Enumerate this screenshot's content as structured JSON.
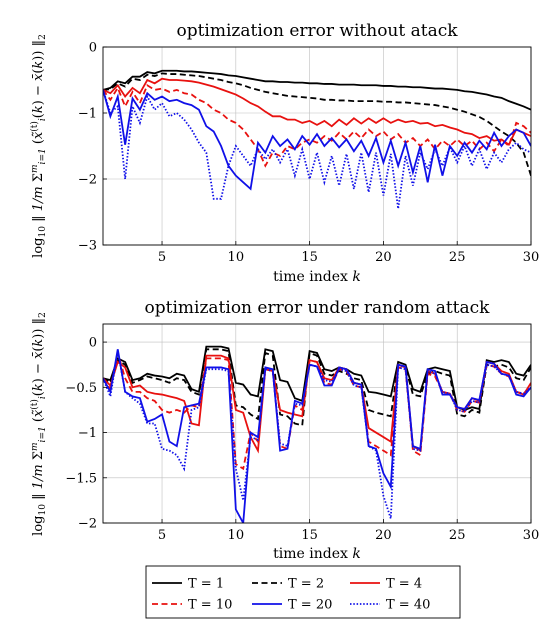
{
  "chart_data": [
    {
      "type": "line",
      "title": "optimization error without atack",
      "xlabel": "time index k",
      "ylabel": "log10 ‖ (1/m) Σ_{i=1}^{m} (x̃_i^{(t)}(k) − x̄(k)) ‖_2",
      "xlim": [
        1,
        30
      ],
      "ylim": [
        -3,
        0
      ],
      "xticks": [
        5,
        10,
        15,
        20,
        25,
        30
      ],
      "yticks": [
        -3,
        -2,
        -1,
        0
      ],
      "grid": true,
      "x": [
        1,
        1.5,
        2,
        2.5,
        3,
        3.5,
        4,
        4.5,
        5,
        5.5,
        6,
        6.5,
        7,
        7.5,
        8,
        8.5,
        9,
        9.5,
        10,
        10.5,
        11,
        11.5,
        12,
        12.5,
        13,
        13.5,
        14,
        14.5,
        15,
        15.5,
        16,
        16.5,
        17,
        17.5,
        18,
        18.5,
        19,
        19.5,
        20,
        20.5,
        21,
        21.5,
        22,
        22.5,
        23,
        23.5,
        24,
        24.5,
        25,
        25.5,
        26,
        26.5,
        27,
        27.5,
        28,
        28.5,
        29,
        29.5,
        30
      ],
      "series": [
        {
          "name": "T = 1",
          "color": "#000000",
          "dash": "solid",
          "values": [
            -0.65,
            -0.62,
            -0.52,
            -0.55,
            -0.45,
            -0.45,
            -0.38,
            -0.4,
            -0.36,
            -0.36,
            -0.36,
            -0.37,
            -0.37,
            -0.38,
            -0.39,
            -0.4,
            -0.41,
            -0.43,
            -0.44,
            -0.46,
            -0.48,
            -0.5,
            -0.52,
            -0.52,
            -0.53,
            -0.53,
            -0.54,
            -0.54,
            -0.55,
            -0.55,
            -0.56,
            -0.56,
            -0.57,
            -0.57,
            -0.57,
            -0.58,
            -0.58,
            -0.58,
            -0.59,
            -0.59,
            -0.6,
            -0.6,
            -0.61,
            -0.61,
            -0.62,
            -0.63,
            -0.63,
            -0.64,
            -0.65,
            -0.67,
            -0.68,
            -0.7,
            -0.72,
            -0.75,
            -0.77,
            -0.82,
            -0.86,
            -0.9,
            -0.95
          ]
        },
        {
          "name": "T = 2",
          "color": "#000000",
          "dash": "dashed",
          "values": [
            -0.65,
            -0.64,
            -0.55,
            -0.6,
            -0.48,
            -0.5,
            -0.42,
            -0.44,
            -0.4,
            -0.41,
            -0.41,
            -0.42,
            -0.43,
            -0.44,
            -0.46,
            -0.48,
            -0.5,
            -0.53,
            -0.55,
            -0.58,
            -0.62,
            -0.65,
            -0.68,
            -0.7,
            -0.72,
            -0.74,
            -0.75,
            -0.76,
            -0.77,
            -0.78,
            -0.8,
            -0.8,
            -0.81,
            -0.81,
            -0.82,
            -0.82,
            -0.82,
            -0.82,
            -0.83,
            -0.83,
            -0.84,
            -0.84,
            -0.85,
            -0.86,
            -0.87,
            -0.88,
            -0.9,
            -0.92,
            -0.95,
            -0.98,
            -1.02,
            -1.06,
            -1.12,
            -1.2,
            -1.28,
            -1.35,
            -1.45,
            -1.6,
            -1.95
          ]
        },
        {
          "name": "T = 4",
          "color": "#e8110f",
          "dash": "solid",
          "values": [
            -0.65,
            -0.7,
            -0.58,
            -0.75,
            -0.62,
            -0.7,
            -0.5,
            -0.55,
            -0.48,
            -0.5,
            -0.5,
            -0.51,
            -0.52,
            -0.54,
            -0.57,
            -0.6,
            -0.64,
            -0.68,
            -0.72,
            -0.78,
            -0.85,
            -0.9,
            -0.98,
            -1.05,
            -1.05,
            -1.1,
            -1.1,
            -1.15,
            -1.12,
            -1.18,
            -1.12,
            -1.2,
            -1.1,
            -1.18,
            -1.08,
            -1.16,
            -1.08,
            -1.15,
            -1.08,
            -1.15,
            -1.1,
            -1.14,
            -1.12,
            -1.16,
            -1.15,
            -1.2,
            -1.18,
            -1.22,
            -1.25,
            -1.3,
            -1.32,
            -1.38,
            -1.35,
            -1.42,
            -1.4,
            -1.48,
            -1.25,
            -1.3,
            -1.35
          ]
        },
        {
          "name": "T = 10",
          "color": "#e8110f",
          "dash": "dashed",
          "values": [
            -0.65,
            -0.8,
            -0.62,
            -0.9,
            -0.68,
            -0.85,
            -0.58,
            -0.65,
            -0.63,
            -0.68,
            -0.65,
            -0.7,
            -0.72,
            -0.8,
            -0.85,
            -0.95,
            -1.0,
            -1.1,
            -1.15,
            -1.25,
            -1.4,
            -1.55,
            -1.8,
            -1.6,
            -1.65,
            -1.5,
            -1.55,
            -1.45,
            -1.4,
            -1.45,
            -1.35,
            -1.42,
            -1.3,
            -1.4,
            -1.28,
            -1.38,
            -1.25,
            -1.35,
            -1.28,
            -1.4,
            -1.32,
            -1.45,
            -1.38,
            -1.5,
            -1.4,
            -1.55,
            -1.42,
            -1.5,
            -1.4,
            -1.5,
            -1.42,
            -1.55,
            -1.45,
            -1.58,
            -1.4,
            -1.5,
            -1.15,
            -1.2,
            -1.3
          ]
        },
        {
          "name": "T = 20",
          "color": "#1010e8",
          "dash": "solid",
          "values": [
            -0.65,
            -1.05,
            -0.75,
            -1.48,
            -0.78,
            -0.95,
            -0.7,
            -0.8,
            -0.75,
            -0.82,
            -0.8,
            -0.85,
            -0.88,
            -0.95,
            -1.2,
            -1.28,
            -1.5,
            -1.8,
            -1.95,
            -2.05,
            -2.15,
            -1.45,
            -1.6,
            -1.35,
            -1.5,
            -1.4,
            -1.55,
            -1.35,
            -1.48,
            -1.32,
            -1.5,
            -1.38,
            -1.52,
            -1.4,
            -1.58,
            -1.42,
            -1.65,
            -1.38,
            -1.75,
            -1.42,
            -1.8,
            -1.45,
            -1.9,
            -1.5,
            -2.05,
            -1.48,
            -1.95,
            -1.5,
            -1.65,
            -1.45,
            -1.6,
            -1.42,
            -1.55,
            -1.3,
            -1.5,
            -1.35,
            -1.25,
            -1.3,
            -1.5
          ]
        },
        {
          "name": "T = 40",
          "color": "#1010e8",
          "dash": "dotted",
          "values": [
            -0.65,
            -1.0,
            -0.9,
            -2.0,
            -0.9,
            -1.15,
            -0.75,
            -0.95,
            -0.85,
            -1.05,
            -1.0,
            -1.1,
            -1.25,
            -1.45,
            -1.6,
            -2.3,
            -2.3,
            -1.8,
            -1.5,
            -1.65,
            -1.8,
            -1.55,
            -1.7,
            -1.55,
            -1.75,
            -1.55,
            -1.95,
            -1.55,
            -2.0,
            -1.6,
            -2.05,
            -1.65,
            -2.1,
            -1.62,
            -2.15,
            -1.6,
            -2.2,
            -1.6,
            -2.25,
            -1.62,
            -2.45,
            -1.65,
            -2.1,
            -1.6,
            -1.85,
            -1.55,
            -1.8,
            -1.52,
            -1.75,
            -1.5,
            -1.8,
            -1.55,
            -1.85,
            -1.6,
            -1.75,
            -1.55,
            -1.45,
            -1.55,
            -1.6
          ]
        }
      ]
    },
    {
      "type": "line",
      "title": "optimization error under random attack",
      "xlabel": "time index k",
      "ylabel": "log10 ‖ (1/m) Σ_{i=1}^{m} (x̃_i^{(t)}(k) − x̄(k)) ‖_2",
      "xlim": [
        1,
        30
      ],
      "ylim": [
        -2,
        0.2
      ],
      "xticks": [
        5,
        10,
        15,
        20,
        25,
        30
      ],
      "yticks": [
        -2,
        -1.5,
        -1,
        -0.5,
        0
      ],
      "grid": true,
      "x": [
        1,
        1.5,
        2,
        2.5,
        3,
        3.5,
        4,
        4.5,
        5,
        5.5,
        6,
        6.5,
        7,
        7.5,
        8,
        8.5,
        9,
        9.5,
        10,
        10.5,
        11,
        11.5,
        12,
        12.5,
        13,
        13.5,
        14,
        14.5,
        15,
        15.5,
        16,
        16.5,
        17,
        17.5,
        18,
        18.5,
        19,
        19.5,
        20,
        20.5,
        21,
        21.5,
        22,
        22.5,
        23,
        23.5,
        24,
        24.5,
        25,
        25.5,
        26,
        26.5,
        27,
        27.5,
        28,
        28.5,
        29,
        29.5,
        30
      ],
      "series": [
        {
          "name": "T = 1",
          "color": "#000000",
          "dash": "solid",
          "values": [
            -0.4,
            -0.42,
            -0.18,
            -0.22,
            -0.42,
            -0.4,
            -0.35,
            -0.37,
            -0.38,
            -0.4,
            -0.35,
            -0.37,
            -0.52,
            -0.55,
            -0.05,
            -0.05,
            -0.05,
            -0.07,
            -0.45,
            -0.47,
            -0.58,
            -0.6,
            -0.08,
            -0.1,
            -0.42,
            -0.44,
            -0.62,
            -0.65,
            -0.1,
            -0.12,
            -0.3,
            -0.32,
            -0.28,
            -0.3,
            -0.35,
            -0.37,
            -0.55,
            -0.56,
            -0.58,
            -0.6,
            -0.22,
            -0.25,
            -0.52,
            -0.55,
            -0.3,
            -0.28,
            -0.3,
            -0.32,
            -0.72,
            -0.75,
            -0.72,
            -0.74,
            -0.2,
            -0.22,
            -0.2,
            -0.22,
            -0.35,
            -0.37,
            -0.25
          ]
        },
        {
          "name": "T = 2",
          "color": "#000000",
          "dash": "dashed",
          "values": [
            -0.4,
            -0.45,
            -0.2,
            -0.25,
            -0.45,
            -0.42,
            -0.38,
            -0.4,
            -0.42,
            -0.45,
            -0.4,
            -0.42,
            -0.55,
            -0.58,
            -0.08,
            -0.08,
            -0.08,
            -0.1,
            -0.7,
            -0.72,
            -0.8,
            -0.85,
            -0.12,
            -0.15,
            -0.8,
            -0.82,
            -0.9,
            -0.92,
            -0.12,
            -0.15,
            -0.35,
            -0.37,
            -0.32,
            -0.35,
            -0.4,
            -0.42,
            -0.75,
            -0.78,
            -0.8,
            -0.82,
            -0.25,
            -0.28,
            -0.58,
            -0.6,
            -0.35,
            -0.32,
            -0.35,
            -0.37,
            -0.8,
            -0.82,
            -0.75,
            -0.78,
            -0.25,
            -0.27,
            -0.25,
            -0.28,
            -0.4,
            -0.42,
            -0.28
          ]
        },
        {
          "name": "T = 4",
          "color": "#e8110f",
          "dash": "solid",
          "values": [
            -0.4,
            -0.48,
            -0.22,
            -0.28,
            -0.5,
            -0.48,
            -0.55,
            -0.57,
            -0.58,
            -0.6,
            -0.62,
            -0.65,
            -0.9,
            -0.92,
            -0.15,
            -0.15,
            -0.15,
            -0.18,
            -0.75,
            -0.78,
            -1.05,
            -1.2,
            -0.3,
            -0.32,
            -0.75,
            -0.78,
            -0.8,
            -0.82,
            -0.2,
            -0.22,
            -0.4,
            -0.42,
            -0.28,
            -0.3,
            -0.45,
            -0.47,
            -0.95,
            -1.0,
            -1.05,
            -1.1,
            -0.25,
            -0.28,
            -1.15,
            -1.2,
            -0.32,
            -0.35,
            -0.55,
            -0.57,
            -0.72,
            -0.74,
            -0.62,
            -0.65,
            -0.22,
            -0.24,
            -0.32,
            -0.35,
            -0.55,
            -0.58,
            -0.45
          ]
        },
        {
          "name": "T = 10",
          "color": "#e8110f",
          "dash": "dashed",
          "values": [
            -0.4,
            -0.52,
            -0.12,
            -0.4,
            -0.55,
            -0.55,
            -0.62,
            -0.65,
            -0.75,
            -0.78,
            -0.75,
            -0.78,
            -0.7,
            -0.72,
            -0.18,
            -0.18,
            -0.18,
            -0.2,
            -1.35,
            -1.4,
            -1.0,
            -1.1,
            -0.3,
            -0.32,
            -1.15,
            -1.18,
            -0.7,
            -0.75,
            -0.2,
            -0.22,
            -0.45,
            -0.47,
            -0.3,
            -0.32,
            -0.48,
            -0.5,
            -1.1,
            -1.15,
            -1.2,
            -1.25,
            -0.28,
            -0.3,
            -1.2,
            -1.25,
            -0.35,
            -0.38,
            -0.55,
            -0.57,
            -0.75,
            -0.77,
            -0.65,
            -0.67,
            -0.25,
            -0.27,
            -0.35,
            -0.38,
            -0.55,
            -0.57,
            -0.48
          ]
        },
        {
          "name": "T = 20",
          "color": "#1010e8",
          "dash": "solid",
          "values": [
            -0.4,
            -0.55,
            -0.08,
            -0.55,
            -0.6,
            -0.62,
            -0.88,
            -0.85,
            -0.8,
            -1.1,
            -1.15,
            -0.72,
            -0.7,
            -0.68,
            -0.28,
            -0.28,
            -0.28,
            -0.3,
            -1.85,
            -2.0,
            -1.0,
            -1.05,
            -0.28,
            -0.3,
            -1.2,
            -1.18,
            -0.65,
            -0.68,
            -0.25,
            -0.27,
            -0.48,
            -0.48,
            -0.28,
            -0.3,
            -0.45,
            -0.47,
            -1.15,
            -1.18,
            -1.45,
            -1.6,
            -0.25,
            -0.27,
            -1.15,
            -1.18,
            -0.3,
            -0.32,
            -0.58,
            -0.58,
            -0.72,
            -0.74,
            -0.62,
            -0.64,
            -0.22,
            -0.24,
            -0.35,
            -0.37,
            -0.58,
            -0.6,
            -0.5
          ]
        },
        {
          "name": "T = 40",
          "color": "#1010e8",
          "dash": "dotted",
          "values": [
            -0.4,
            -0.6,
            -0.1,
            -0.55,
            -0.62,
            -0.68,
            -0.9,
            -0.9,
            -1.18,
            -1.2,
            -1.25,
            -1.4,
            -0.75,
            -0.72,
            -0.3,
            -0.3,
            -0.3,
            -0.32,
            -1.4,
            -1.75,
            -1.05,
            -1.08,
            -0.3,
            -0.32,
            -1.12,
            -1.15,
            -0.68,
            -0.7,
            -0.25,
            -0.27,
            -0.42,
            -0.44,
            -0.3,
            -0.32,
            -0.48,
            -0.5,
            -1.15,
            -1.2,
            -1.7,
            -1.95,
            -0.28,
            -0.3,
            -1.18,
            -1.2,
            -0.32,
            -0.35,
            -0.55,
            -0.57,
            -0.75,
            -0.77,
            -0.65,
            -0.67,
            -0.25,
            -0.27,
            -0.35,
            -0.37,
            -0.55,
            -0.57,
            -0.5
          ]
        }
      ]
    }
  ],
  "legend": {
    "position": "bottom",
    "entries": [
      {
        "label": "T = 1",
        "color": "#000000",
        "dash": "solid"
      },
      {
        "label": "T = 2",
        "color": "#000000",
        "dash": "dashed"
      },
      {
        "label": "T = 4",
        "color": "#e8110f",
        "dash": "solid"
      },
      {
        "label": "T = 10",
        "color": "#e8110f",
        "dash": "dashed"
      },
      {
        "label": "T = 20",
        "color": "#1010e8",
        "dash": "solid"
      },
      {
        "label": "T = 40",
        "color": "#1010e8",
        "dash": "dotted"
      }
    ]
  }
}
